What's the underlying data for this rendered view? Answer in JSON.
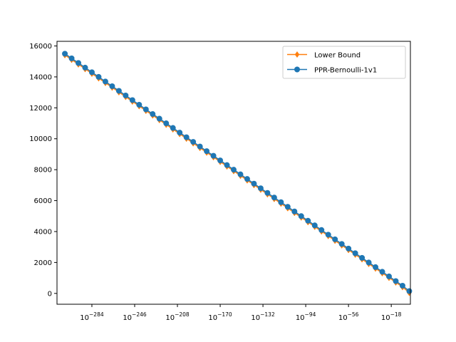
{
  "chart_data": {
    "type": "line",
    "x_scale": "log",
    "x_tick_base": "10",
    "x_tick_exponents": [
      "−284",
      "−246",
      "−208",
      "−170",
      "−132",
      "−94",
      "−56",
      "−18"
    ],
    "x_tick_values_log10": [
      -284,
      -246,
      -208,
      -170,
      -132,
      -94,
      -56,
      -18
    ],
    "xlim_log10": [
      -315,
      -1
    ],
    "y_ticks": [
      "0",
      "2000",
      "4000",
      "6000",
      "8000",
      "10000",
      "12000",
      "14000",
      "16000"
    ],
    "y_tick_values": [
      0,
      2000,
      4000,
      6000,
      8000,
      10000,
      12000,
      14000,
      16000
    ],
    "ylim": [
      -700,
      16300
    ],
    "series": [
      {
        "name": "Lower Bound",
        "color": "#ff7f0e",
        "marker": "diamond",
        "x_log10": [
          -308,
          -302,
          -296,
          -290,
          -284,
          -278,
          -272,
          -266,
          -260,
          -254,
          -248,
          -242,
          -236,
          -230,
          -224,
          -218,
          -212,
          -206,
          -200,
          -194,
          -188,
          -182,
          -176,
          -170,
          -164,
          -158,
          -152,
          -146,
          -140,
          -134,
          -128,
          -122,
          -116,
          -110,
          -104,
          -98,
          -92,
          -86,
          -80,
          -74,
          -68,
          -62,
          -56,
          -50,
          -44,
          -38,
          -32,
          -26,
          -20,
          -14,
          -8,
          -2
        ],
        "y": [
          15420,
          15120,
          14820,
          14520,
          14220,
          13920,
          13620,
          13320,
          13020,
          12720,
          12420,
          12120,
          11820,
          11520,
          11220,
          10920,
          10620,
          10320,
          10020,
          9720,
          9420,
          9120,
          8820,
          8520,
          8220,
          7920,
          7620,
          7320,
          7020,
          6720,
          6420,
          6120,
          5820,
          5520,
          5220,
          4920,
          4620,
          4320,
          4020,
          3720,
          3420,
          3120,
          2820,
          2520,
          2220,
          1920,
          1620,
          1320,
          1020,
          720,
          420,
          50
        ]
      },
      {
        "name": "PPR-Bernoulli-1v1",
        "color": "#1f77b4",
        "marker": "circle",
        "x_log10": [
          -308,
          -302,
          -296,
          -290,
          -284,
          -278,
          -272,
          -266,
          -260,
          -254,
          -248,
          -242,
          -236,
          -230,
          -224,
          -218,
          -212,
          -206,
          -200,
          -194,
          -188,
          -182,
          -176,
          -170,
          -164,
          -158,
          -152,
          -146,
          -140,
          -134,
          -128,
          -122,
          -116,
          -110,
          -104,
          -98,
          -92,
          -86,
          -80,
          -74,
          -68,
          -62,
          -56,
          -50,
          -44,
          -38,
          -32,
          -26,
          -20,
          -14,
          -8,
          -2
        ],
        "y": [
          15500,
          15200,
          14900,
          14600,
          14300,
          14000,
          13700,
          13400,
          13100,
          12800,
          12500,
          12200,
          11900,
          11600,
          11300,
          11000,
          10700,
          10400,
          10100,
          9800,
          9500,
          9200,
          8900,
          8600,
          8300,
          8000,
          7700,
          7400,
          7100,
          6800,
          6500,
          6200,
          5900,
          5600,
          5300,
          5000,
          4700,
          4400,
          4100,
          3800,
          3500,
          3200,
          2900,
          2600,
          2300,
          2000,
          1700,
          1400,
          1100,
          800,
          500,
          150
        ]
      }
    ],
    "legend_position": "top-right",
    "grid": false,
    "title": "",
    "xlabel": "",
    "ylabel": ""
  }
}
